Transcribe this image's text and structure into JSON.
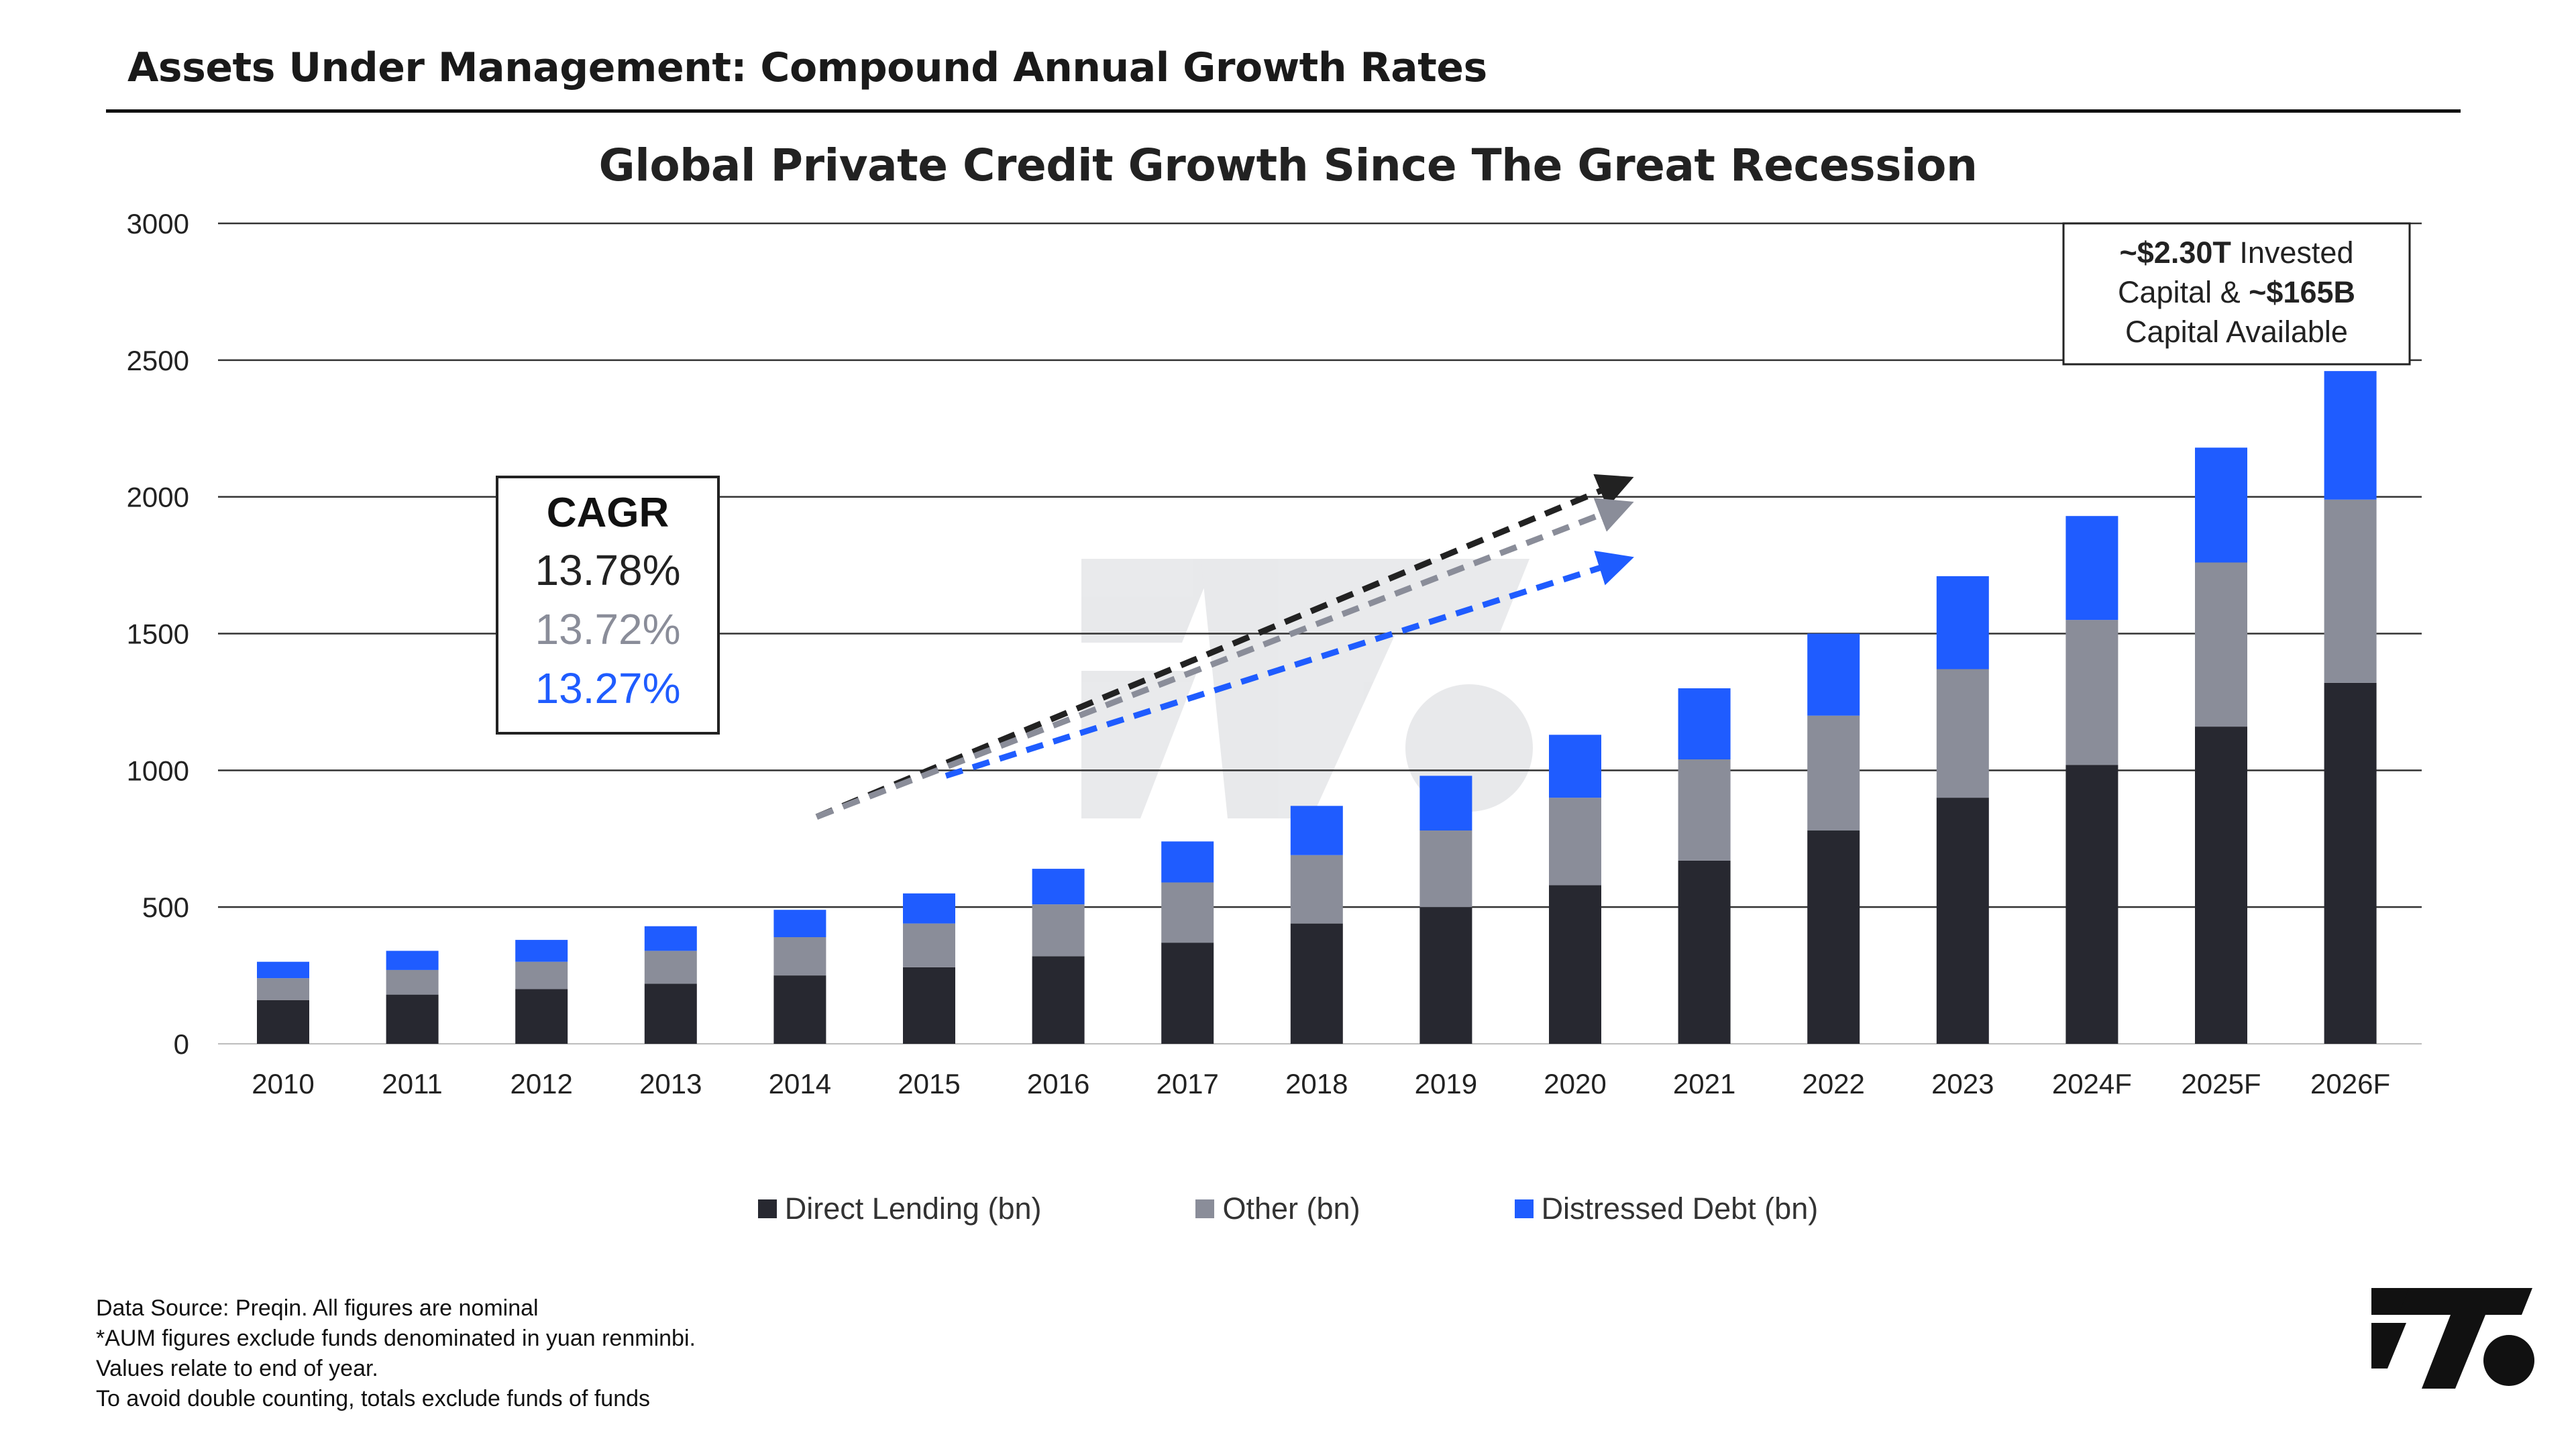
{
  "header": {
    "title": "Assets Under Management: Compound Annual Growth Rates"
  },
  "colors": {
    "direct_lending": "#272830",
    "other": "#8a8d99",
    "distressed": "#1f5cff",
    "cagr_dark": "#222222",
    "cagr_gray": "#8a8d99",
    "cagr_blue": "#1f5cff"
  },
  "cagr_box": {
    "title": "CAGR",
    "values": [
      "13.78%",
      "13.72%",
      "13.27%"
    ]
  },
  "callout": {
    "line1_bold": "~$2.30T",
    "line1_rest": " Invested",
    "line2_pre": "Capital & ",
    "line2_bold": "~$165B",
    "line3": "Capital Available"
  },
  "chart_data": {
    "type": "bar",
    "stacked": true,
    "title": "Global Private Credit Growth Since The Great Recession",
    "xlabel": "",
    "ylabel": "",
    "ylim": [
      0,
      3000
    ],
    "yticks": [
      0,
      500,
      1000,
      1500,
      2000,
      2500,
      3000
    ],
    "grid": true,
    "legend_position": "bottom",
    "categories": [
      "2010",
      "2011",
      "2012",
      "2013",
      "2014",
      "2015",
      "2016",
      "2017",
      "2018",
      "2019",
      "2020",
      "2021",
      "2022",
      "2023",
      "2024F",
      "2025F",
      "2026F"
    ],
    "series": [
      {
        "name": "Direct Lending (bn)",
        "color": "#272830",
        "values": [
          160,
          180,
          200,
          220,
          250,
          280,
          320,
          370,
          440,
          500,
          580,
          670,
          780,
          900,
          1020,
          1160,
          1320
        ]
      },
      {
        "name": "Other (bn)",
        "color": "#8a8d99",
        "values": [
          80,
          90,
          100,
          120,
          140,
          160,
          190,
          220,
          250,
          280,
          320,
          370,
          420,
          470,
          530,
          600,
          670
        ]
      },
      {
        "name": "Distressed Debt (bn)",
        "color": "#1f5cff",
        "values": [
          60,
          70,
          80,
          90,
          100,
          110,
          130,
          150,
          180,
          200,
          230,
          260,
          300,
          340,
          380,
          420,
          470
        ]
      }
    ],
    "trend_arrows": [
      {
        "color": "#222222",
        "from": [
          "2014",
          830
        ],
        "to": [
          "2020",
          2060
        ]
      },
      {
        "color": "#8a8d99",
        "from": [
          "2014",
          830
        ],
        "to": [
          "2020",
          1970
        ]
      },
      {
        "color": "#1f5cff",
        "from": [
          "2015",
          980
        ],
        "to": [
          "2020",
          1770
        ]
      }
    ]
  },
  "footnotes": [
    "Data Source: Preqin. All figures are nominal",
    "*AUM figures exclude funds denominated in yuan renminbi.",
    "Values relate to end of year.",
    "To avoid double counting, totals exclude funds of funds"
  ]
}
